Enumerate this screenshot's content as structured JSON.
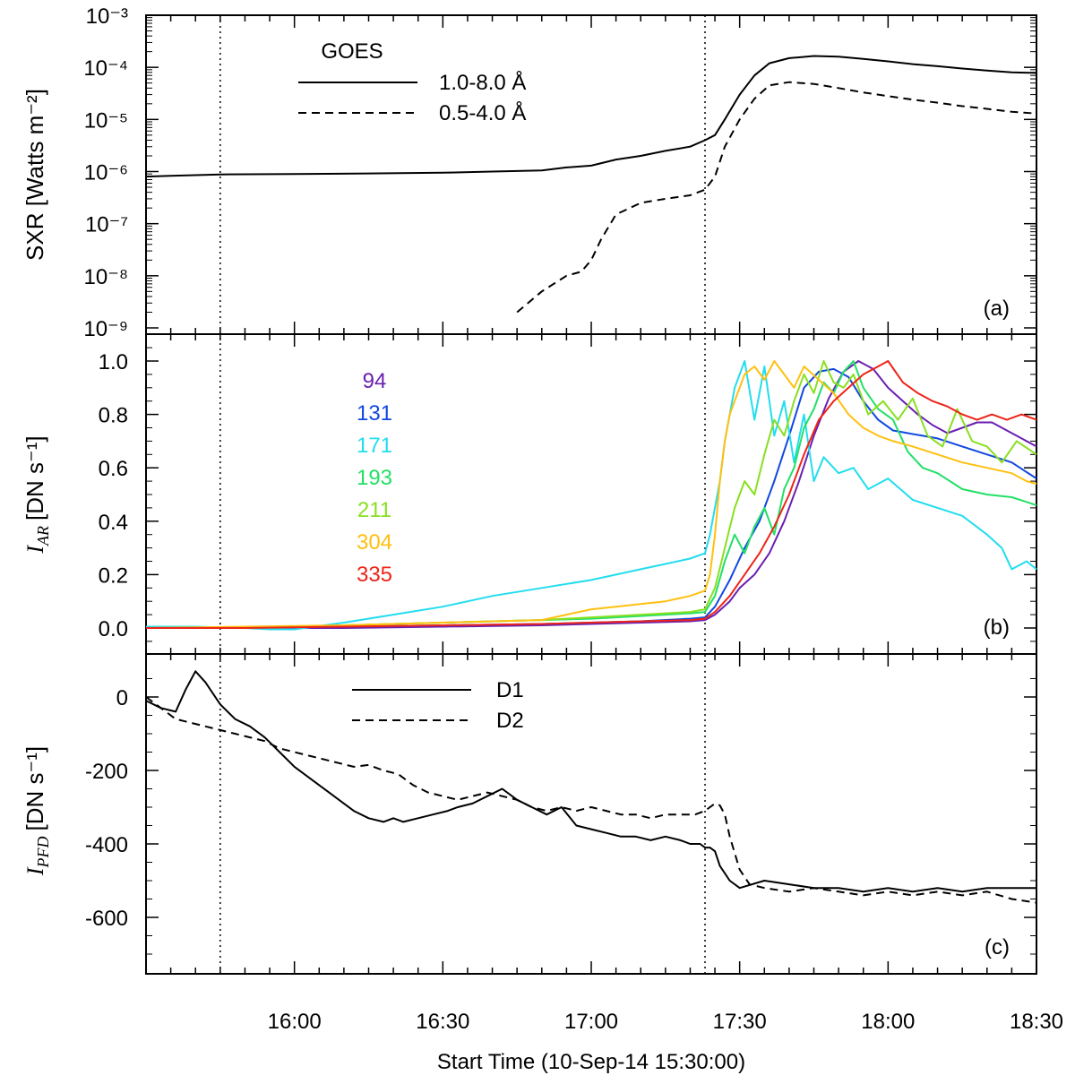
{
  "figure": {
    "xlabel": "Start Time (10-Sep-14 15:30:00)",
    "x_range_minutes": [
      0,
      180
    ],
    "x_ticks": [
      {
        "min": 30,
        "label": "16:00"
      },
      {
        "min": 60,
        "label": "16:30"
      },
      {
        "min": 90,
        "label": "17:00"
      },
      {
        "min": 120,
        "label": "17:30"
      },
      {
        "min": 150,
        "label": "18:00"
      },
      {
        "min": 180,
        "label": "18:30"
      }
    ],
    "vlines_minutes": [
      15,
      113
    ]
  },
  "chart_data": [
    {
      "type": "line",
      "panel_label": "(a)",
      "ylabel": "SXR [Watts m⁻²]",
      "yscale": "log",
      "ylim": [
        1e-09,
        0.001
      ],
      "y_tick_labels": [
        "10⁻⁹",
        "10⁻⁸",
        "10⁻⁷",
        "10⁻⁶",
        "10⁻⁵",
        "10⁻⁴",
        "10⁻³"
      ],
      "legend_title": "GOES",
      "series": [
        {
          "name": "1.0-8.0 Å",
          "style": "solid",
          "x": [
            0,
            5,
            15,
            30,
            45,
            60,
            70,
            80,
            85,
            90,
            95,
            100,
            105,
            110,
            113,
            115,
            117,
            120,
            123,
            126,
            130,
            135,
            140,
            145,
            150,
            155,
            160,
            165,
            170,
            175,
            180
          ],
          "y": [
            8e-07,
            8.3e-07,
            8.8e-07,
            9e-07,
            9.2e-07,
            9.5e-07,
            1e-06,
            1.05e-06,
            1.2e-06,
            1.3e-06,
            1.7e-06,
            2e-06,
            2.5e-06,
            3e-06,
            4e-06,
            5e-06,
            1e-05,
            3e-05,
            7e-05,
            0.00012,
            0.00015,
            0.000165,
            0.00016,
            0.000145,
            0.00013,
            0.000115,
            0.000105,
            9.5e-05,
            8.7e-05,
            8e-05,
            7.8e-05
          ]
        },
        {
          "name": "0.5-4.0 Å",
          "style": "dashed",
          "x": [
            75,
            80,
            85,
            88,
            90,
            92,
            95,
            100,
            105,
            110,
            113,
            115,
            117,
            120,
            123,
            126,
            130,
            135,
            140,
            145,
            150,
            155,
            160,
            165,
            170,
            175,
            180
          ],
          "y": [
            2e-09,
            5e-09,
            1e-08,
            1.2e-08,
            2e-08,
            5e-08,
            1.5e-07,
            2.5e-07,
            3e-07,
            3.5e-07,
            4.5e-07,
            8e-07,
            3e-06,
            1e-05,
            2.5e-05,
            4.5e-05,
            5.2e-05,
            4.8e-05,
            4e-05,
            3.3e-05,
            2.8e-05,
            2.4e-05,
            2.1e-05,
            1.8e-05,
            1.6e-05,
            1.4e-05,
            1.3e-05
          ]
        }
      ]
    },
    {
      "type": "line",
      "panel_label": "(b)",
      "ylabel": "I",
      "ylabel_subscript": "AR",
      "ylabel_unit": "[DN s⁻¹]",
      "ylim": [
        -0.1,
        1.07
      ],
      "y_tick_labels": [
        "0.0",
        "0.2",
        "0.4",
        "0.6",
        "0.8",
        "1.0"
      ],
      "series": [
        {
          "name": "94",
          "color": "#6a1fb0",
          "x": [
            0,
            20,
            40,
            60,
            80,
            100,
            110,
            113,
            115,
            118,
            120,
            123,
            126,
            129,
            132,
            135,
            138,
            141,
            144,
            147,
            150,
            153,
            156,
            159,
            162,
            165,
            168,
            171,
            174,
            177,
            180
          ],
          "y": [
            0.0,
            0.0,
            0.0,
            0.005,
            0.01,
            0.02,
            0.025,
            0.03,
            0.05,
            0.1,
            0.15,
            0.2,
            0.28,
            0.4,
            0.55,
            0.72,
            0.86,
            0.96,
            1.0,
            0.97,
            0.9,
            0.85,
            0.8,
            0.76,
            0.73,
            0.75,
            0.77,
            0.77,
            0.74,
            0.71,
            0.68
          ]
        },
        {
          "name": "131",
          "color": "#1148e0",
          "x": [
            0,
            20,
            40,
            60,
            80,
            100,
            110,
            113,
            115,
            118,
            121,
            124,
            127,
            130,
            133,
            136,
            139,
            142,
            145,
            148,
            151,
            154,
            157,
            160,
            165,
            170,
            175,
            180
          ],
          "y": [
            0.0,
            0.0,
            0.005,
            0.01,
            0.015,
            0.025,
            0.035,
            0.04,
            0.08,
            0.18,
            0.3,
            0.4,
            0.55,
            0.72,
            0.9,
            0.96,
            0.97,
            0.94,
            0.85,
            0.78,
            0.74,
            0.73,
            0.72,
            0.71,
            0.68,
            0.65,
            0.62,
            0.56
          ]
        },
        {
          "name": "171",
          "color": "#22ddee",
          "x": [
            0,
            10,
            20,
            25,
            30,
            40,
            50,
            60,
            70,
            80,
            90,
            100,
            105,
            110,
            113,
            114,
            116,
            117,
            119,
            121,
            123,
            125,
            127,
            129,
            131,
            133,
            135,
            137,
            140,
            143,
            146,
            150,
            155,
            160,
            165,
            170,
            173,
            175,
            178,
            180
          ],
          "y": [
            0.005,
            0.005,
            0.0,
            -0.005,
            -0.005,
            0.02,
            0.05,
            0.08,
            0.12,
            0.15,
            0.18,
            0.22,
            0.24,
            0.26,
            0.28,
            0.35,
            0.55,
            0.7,
            0.9,
            1.0,
            0.78,
            0.98,
            0.72,
            0.85,
            0.62,
            0.8,
            0.55,
            0.64,
            0.58,
            0.6,
            0.52,
            0.56,
            0.48,
            0.45,
            0.42,
            0.35,
            0.3,
            0.22,
            0.25,
            0.22
          ]
        },
        {
          "name": "193",
          "color": "#22e066",
          "x": [
            0,
            20,
            40,
            60,
            80,
            90,
            100,
            110,
            113,
            115,
            117,
            119,
            121,
            123,
            125,
            127,
            129,
            131,
            133,
            135,
            137,
            139,
            141,
            143,
            145,
            148,
            151,
            154,
            157,
            160,
            165,
            170,
            175,
            180
          ],
          "y": [
            0.0,
            0.0,
            0.01,
            0.02,
            0.03,
            0.035,
            0.045,
            0.055,
            0.06,
            0.12,
            0.25,
            0.35,
            0.28,
            0.38,
            0.45,
            0.35,
            0.52,
            0.6,
            0.75,
            0.82,
            0.92,
            0.88,
            0.96,
            1.0,
            0.9,
            0.82,
            0.78,
            0.66,
            0.6,
            0.58,
            0.52,
            0.5,
            0.49,
            0.46
          ]
        },
        {
          "name": "211",
          "color": "#88e020",
          "x": [
            0,
            20,
            40,
            60,
            80,
            90,
            100,
            110,
            113,
            115,
            117,
            119,
            121,
            123,
            125,
            127,
            129,
            131,
            133,
            135,
            137,
            139,
            141,
            143,
            146,
            149,
            152,
            155,
            158,
            161,
            164,
            167,
            170,
            173,
            176,
            180
          ],
          "y": [
            0.0,
            0.0,
            0.01,
            0.02,
            0.03,
            0.04,
            0.05,
            0.06,
            0.07,
            0.15,
            0.3,
            0.45,
            0.55,
            0.5,
            0.65,
            0.78,
            0.72,
            0.85,
            0.95,
            0.88,
            1.0,
            0.92,
            0.9,
            0.95,
            0.8,
            0.85,
            0.78,
            0.86,
            0.72,
            0.68,
            0.82,
            0.7,
            0.68,
            0.62,
            0.7,
            0.65
          ]
        },
        {
          "name": "304",
          "color": "#ffc010",
          "x": [
            0,
            20,
            40,
            60,
            80,
            85,
            90,
            95,
            100,
            105,
            110,
            113,
            114,
            115,
            116,
            117,
            118,
            119,
            121,
            123,
            125,
            127,
            129,
            131,
            133,
            136,
            139,
            142,
            145,
            148,
            151,
            155,
            160,
            165,
            170,
            175,
            178,
            180
          ],
          "y": [
            0.0,
            0.005,
            0.01,
            0.02,
            0.03,
            0.05,
            0.07,
            0.08,
            0.09,
            0.1,
            0.12,
            0.14,
            0.2,
            0.35,
            0.55,
            0.7,
            0.8,
            0.85,
            0.95,
            0.98,
            0.93,
            1.0,
            0.95,
            0.9,
            0.98,
            0.93,
            0.88,
            0.8,
            0.75,
            0.72,
            0.7,
            0.68,
            0.65,
            0.62,
            0.6,
            0.58,
            0.55,
            0.54
          ]
        },
        {
          "name": "335",
          "color": "#ee2418",
          "x": [
            0,
            20,
            40,
            60,
            80,
            100,
            110,
            113,
            115,
            118,
            121,
            124,
            127,
            130,
            133,
            136,
            139,
            142,
            145,
            148,
            150,
            153,
            156,
            159,
            162,
            165,
            168,
            171,
            174,
            177,
            180
          ],
          "y": [
            0.0,
            0.0,
            0.005,
            0.01,
            0.015,
            0.025,
            0.03,
            0.035,
            0.06,
            0.12,
            0.2,
            0.28,
            0.38,
            0.5,
            0.65,
            0.78,
            0.85,
            0.9,
            0.95,
            0.98,
            1.0,
            0.92,
            0.88,
            0.85,
            0.83,
            0.8,
            0.78,
            0.8,
            0.78,
            0.8,
            0.78
          ]
        }
      ]
    },
    {
      "type": "line",
      "panel_label": "(c)",
      "ylabel": "I",
      "ylabel_subscript": "PFD",
      "ylabel_unit": "[DN s⁻¹]",
      "ylim": [
        -750,
        100
      ],
      "y_tick_labels": [
        "-600",
        "-400",
        "-200",
        "0"
      ],
      "series": [
        {
          "name": "D1",
          "style": "solid",
          "x": [
            0,
            3,
            6,
            8,
            10,
            12,
            15,
            18,
            21,
            24,
            27,
            30,
            33,
            35,
            37,
            40,
            42,
            45,
            48,
            50,
            52,
            55,
            58,
            61,
            63,
            66,
            69,
            72,
            75,
            78,
            81,
            84,
            87,
            90,
            93,
            96,
            99,
            102,
            105,
            108,
            110,
            112,
            113,
            114,
            115,
            116,
            118,
            120,
            125,
            130,
            135,
            140,
            145,
            150,
            155,
            160,
            165,
            170,
            175,
            180
          ],
          "y": [
            -10,
            -30,
            -40,
            20,
            70,
            40,
            -20,
            -60,
            -80,
            -110,
            -150,
            -190,
            -220,
            -240,
            -260,
            -290,
            -310,
            -330,
            -340,
            -330,
            -340,
            -330,
            -320,
            -310,
            -300,
            -290,
            -270,
            -250,
            -280,
            -300,
            -320,
            -300,
            -350,
            -360,
            -370,
            -380,
            -380,
            -390,
            -380,
            -390,
            -400,
            -400,
            -410,
            -410,
            -420,
            -460,
            -500,
            -520,
            -500,
            -510,
            -520,
            -520,
            -530,
            -520,
            -530,
            -520,
            -530,
            -520,
            -520,
            -520
          ]
        },
        {
          "name": "D2",
          "style": "dashed",
          "x": [
            0,
            3,
            6,
            9,
            12,
            15,
            18,
            21,
            24,
            27,
            30,
            33,
            36,
            39,
            42,
            45,
            48,
            51,
            54,
            57,
            60,
            63,
            66,
            69,
            72,
            75,
            78,
            81,
            84,
            87,
            90,
            93,
            96,
            99,
            102,
            105,
            108,
            111,
            113,
            114,
            115,
            116,
            117,
            118,
            120,
            122,
            125,
            130,
            135,
            140,
            145,
            150,
            155,
            160,
            165,
            170,
            175,
            180
          ],
          "y": [
            0,
            -30,
            -60,
            -70,
            -80,
            -90,
            -100,
            -110,
            -120,
            -140,
            -150,
            -160,
            -170,
            -180,
            -190,
            -185,
            -200,
            -210,
            -240,
            -260,
            -270,
            -280,
            -270,
            -260,
            -270,
            -280,
            -300,
            -310,
            -300,
            -310,
            -300,
            -310,
            -320,
            -320,
            -330,
            -320,
            -320,
            -320,
            -310,
            -300,
            -290,
            -295,
            -320,
            -380,
            -470,
            -510,
            -520,
            -530,
            -520,
            -530,
            -540,
            -530,
            -540,
            -530,
            -540,
            -530,
            -550,
            -560
          ]
        }
      ]
    }
  ]
}
